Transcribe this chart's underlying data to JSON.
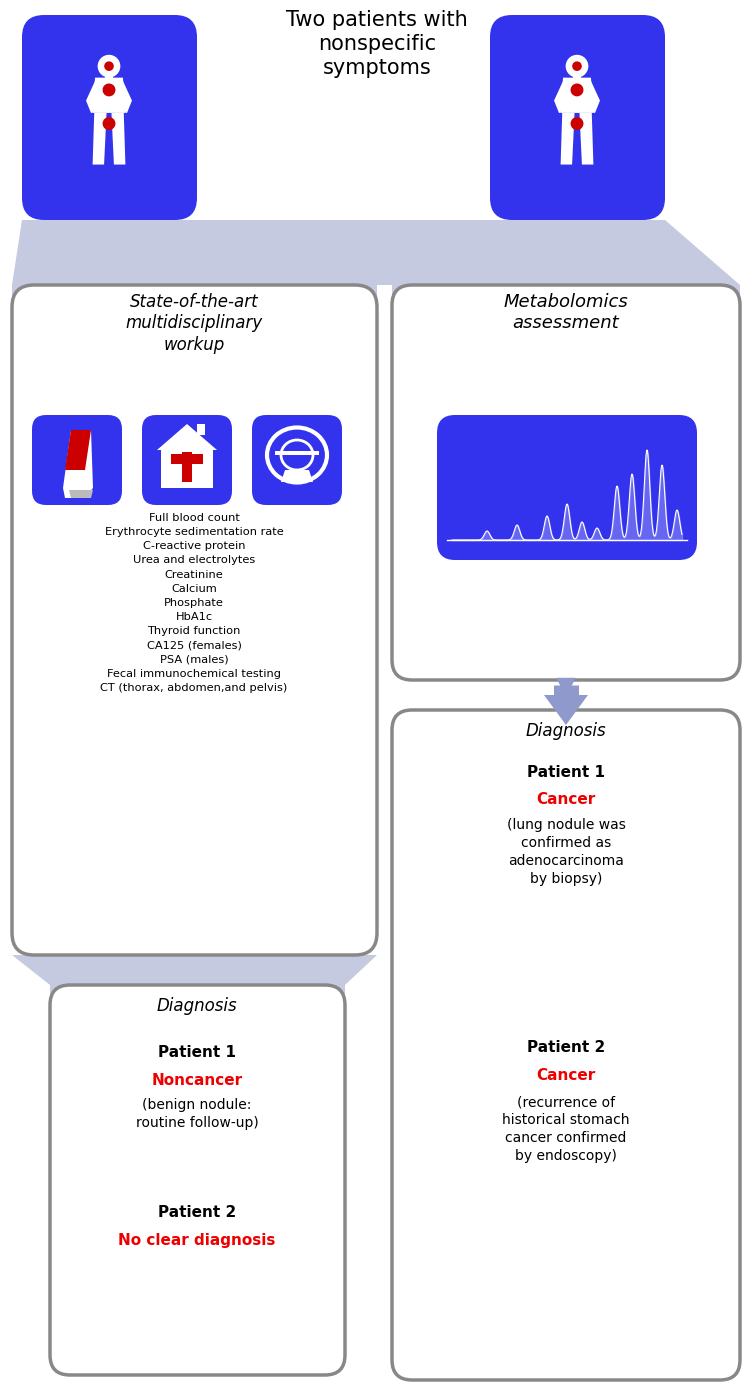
{
  "title": "Two patients with\nnonspecific\nsymptoms",
  "bg_color": "#ffffff",
  "blue_box_color": "#3333ee",
  "box_border_color": "#888888",
  "arrow_color": "#9099cc",
  "red_color": "#ee0000",
  "funnel_color": "#c5cae0",
  "workup_title": "State-of-the-art\nmultidisciplinary\nworkup",
  "metabolomics_title": "Metabolomics\nassessment",
  "workup_items": [
    "Full blood count",
    "Erythrocyte sedimentation rate",
    "C-reactive protein",
    "Urea and electrolytes",
    "Creatinine",
    "Calcium",
    "Phosphate",
    "HbA1c",
    "Thyroid function",
    "CA125 (females)",
    "PSA (males)",
    "Fecal immunochemical testing",
    "CT (thorax, abdomen,and pelvis)"
  ],
  "left_diag_title": "Diagnosis",
  "left_diag_p1": "Patient 1",
  "left_diag_p1_result": "Noncancer",
  "left_diag_p1_detail": "(benign nodule:\nroutine follow-up)",
  "left_diag_p2": "Patient 2",
  "left_diag_p2_result": "No clear diagnosis",
  "right_diag_title": "Diagnosis",
  "right_diag_p1": "Patient 1",
  "right_diag_p1_result": "Cancer",
  "right_diag_p1_detail": "(lung nodule was\nconfirmed as\nadenocarcinoma\nby biopsy)",
  "right_diag_p2": "Patient 2",
  "right_diag_p2_result": "Cancer",
  "right_diag_p2_detail": "(recurrence of\nhistorical stomach\ncancer confirmed\nby endoscopy)"
}
